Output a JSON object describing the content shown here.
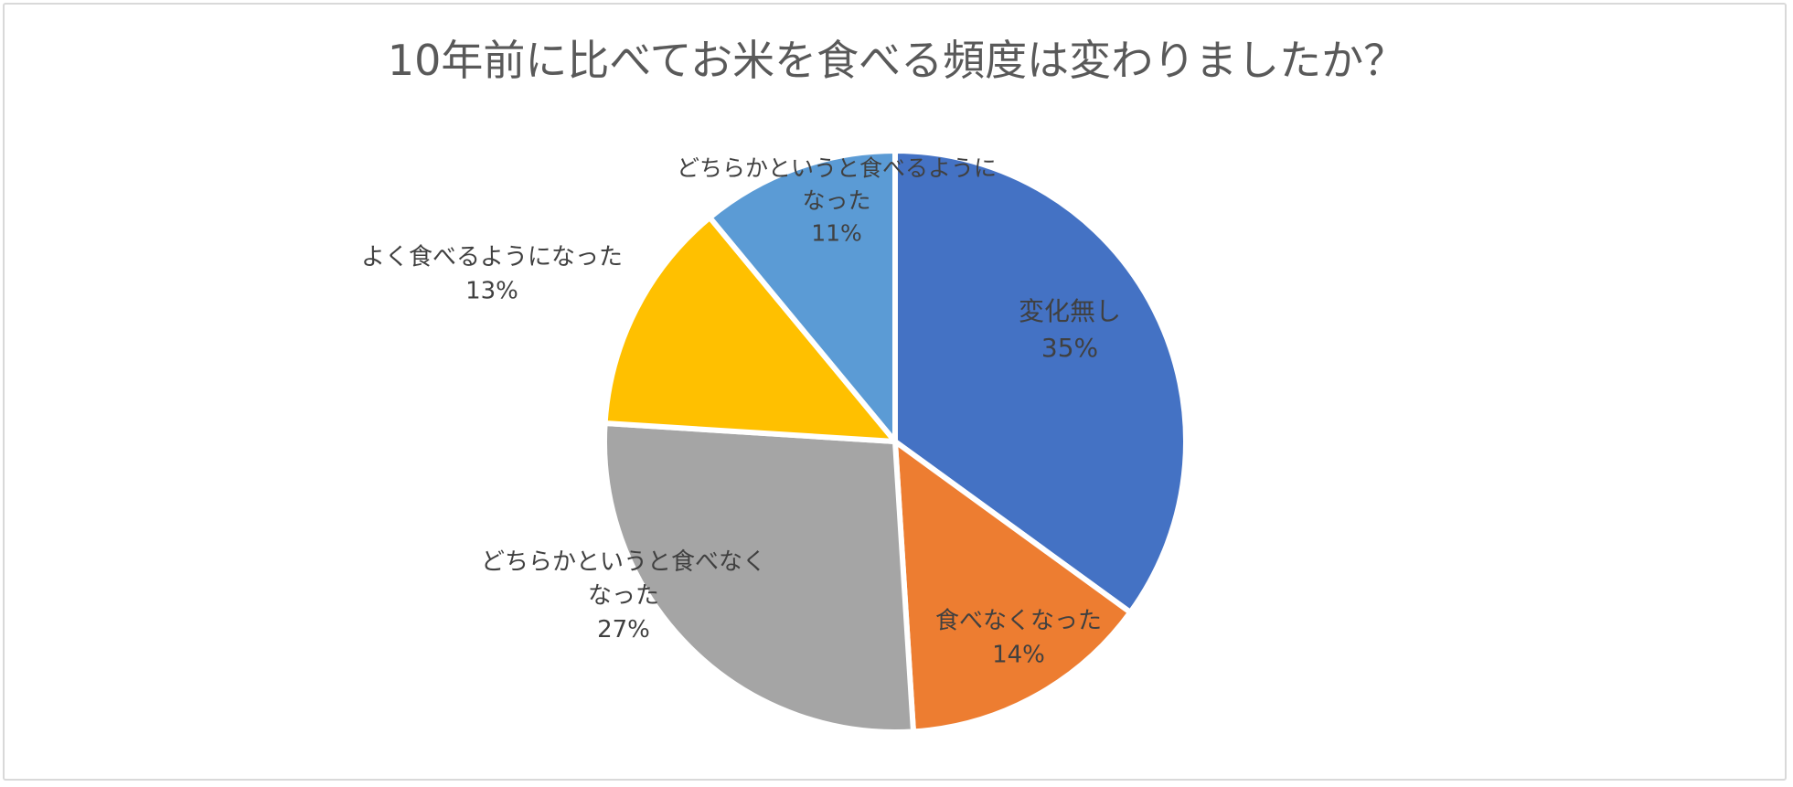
{
  "chart_data": {
    "type": "pie",
    "title": "10年前に比べてお米を食べる頻度は変わりましたか？",
    "slices": [
      {
        "label": "変化無し",
        "value": 35,
        "value_label": "35%",
        "color": "#4472C4"
      },
      {
        "label": "食べなくなった",
        "value": 14,
        "value_label": "14%",
        "color": "#ED7D31"
      },
      {
        "label": "どちらかというと食べなくなった",
        "value": 27,
        "value_label": "27%",
        "color": "#A5A5A5"
      },
      {
        "label": "よく食べるようになった",
        "value": 13,
        "value_label": "13%",
        "color": "#FFC000"
      },
      {
        "label": "どちらかというと食べるようになった",
        "value": 11,
        "value_label": "11%",
        "color": "#5B9BD5"
      }
    ],
    "start_angle": "12 o'clock",
    "direction": "clockwise",
    "legend": "none"
  }
}
